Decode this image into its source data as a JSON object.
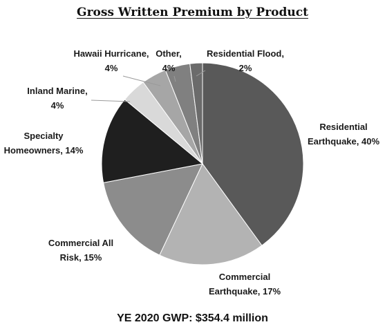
{
  "chart_data": {
    "type": "pie",
    "title": "Gross Written Premium by Product",
    "footer": "YE 2020 GWP: $354.4 million",
    "slices": [
      {
        "label_lines": [
          "Residential",
          "Earthquake, 40%"
        ],
        "value": 40,
        "color": "#595959"
      },
      {
        "label_lines": [
          "Commercial",
          "Earthquake, 17%"
        ],
        "value": 17,
        "color": "#b3b3b3"
      },
      {
        "label_lines": [
          "Commercial All",
          "Risk, 15%"
        ],
        "value": 15,
        "color": "#8c8c8c"
      },
      {
        "label_lines": [
          "Specialty",
          "Homeowners, 14%"
        ],
        "value": 14,
        "color": "#1f1f1f"
      },
      {
        "label_lines": [
          "Inland Marine,",
          "4%"
        ],
        "value": 4,
        "color": "#d9d9d9"
      },
      {
        "label_lines": [
          "Hawaii Hurricane,",
          "4%"
        ],
        "value": 4,
        "color": "#a6a6a6"
      },
      {
        "label_lines": [
          "Other,",
          "4%"
        ],
        "value": 4,
        "color": "#808080"
      },
      {
        "label_lines": [
          "Residential Flood,",
          "2%"
        ],
        "value": 2,
        "color": "#6b6b6b"
      }
    ]
  }
}
